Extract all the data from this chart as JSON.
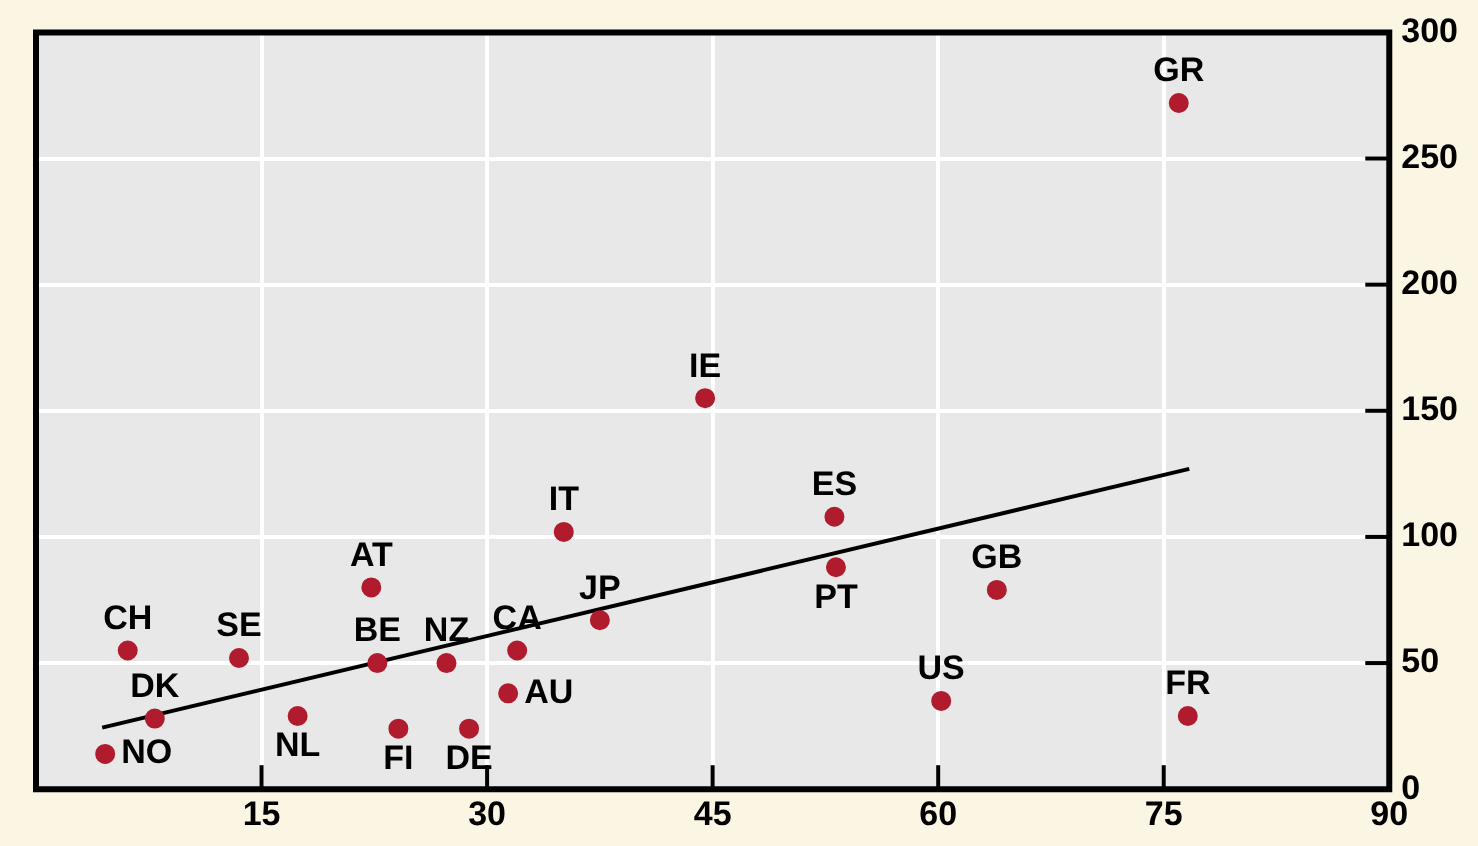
{
  "chart_data": {
    "type": "scatter",
    "xlim": [
      0,
      90
    ],
    "xticks": [
      15,
      30,
      45,
      60,
      75,
      90
    ],
    "ylim": [
      0,
      300
    ],
    "yticks": [
      0,
      50,
      100,
      150,
      200,
      250,
      300
    ],
    "grid": true,
    "legend": false,
    "series": [
      {
        "marker": "circle",
        "color": "#b01c2e",
        "x": [
          76.0,
          44.5,
          53.1,
          53.2,
          63.9,
          60.2,
          76.6,
          35.1,
          22.3,
          6.1,
          13.5,
          22.7,
          27.3,
          32.0,
          37.5,
          31.4,
          7.9,
          4.6,
          17.4,
          24.1,
          28.8
        ],
        "values": [
          272,
          155,
          108,
          88,
          79,
          35,
          29,
          102,
          80,
          55,
          52,
          50,
          50,
          55,
          67,
          38,
          28,
          14,
          29,
          24,
          24
        ]
      },
      {
        "type": "line",
        "color": "#000000",
        "line_style": "solid",
        "x": [
          4.4,
          76.7
        ],
        "values": [
          24.4,
          127
        ]
      }
    ],
    "annotations": [
      {
        "text": "GR",
        "x": 76.0,
        "y": 272
      },
      {
        "text": "IE",
        "x": 44.5,
        "y": 155
      },
      {
        "text": "ES",
        "x": 53.1,
        "y": 108
      },
      {
        "text": "PT",
        "x": 53.2,
        "y": 88
      },
      {
        "text": "GB",
        "x": 63.9,
        "y": 79
      },
      {
        "text": "US",
        "x": 60.2,
        "y": 35
      },
      {
        "text": "FR",
        "x": 76.6,
        "y": 29
      },
      {
        "text": "IT",
        "x": 35.1,
        "y": 102
      },
      {
        "text": "AT",
        "x": 22.3,
        "y": 80
      },
      {
        "text": "CH",
        "x": 6.1,
        "y": 55
      },
      {
        "text": "SE",
        "x": 13.5,
        "y": 52
      },
      {
        "text": "BE",
        "x": 22.7,
        "y": 50
      },
      {
        "text": "NZ",
        "x": 27.3,
        "y": 50
      },
      {
        "text": "CA",
        "x": 32.0,
        "y": 55
      },
      {
        "text": "JP",
        "x": 37.5,
        "y": 67
      },
      {
        "text": "AU",
        "x": 31.4,
        "y": 38
      },
      {
        "text": "DK",
        "x": 7.9,
        "y": 28
      },
      {
        "text": "NO",
        "x": 4.6,
        "y": 14
      },
      {
        "text": "NL",
        "x": 17.4,
        "y": 29
      },
      {
        "text": "FI",
        "x": 24.1,
        "y": 24
      },
      {
        "text": "DE",
        "x": 28.8,
        "y": 24
      }
    ]
  }
}
